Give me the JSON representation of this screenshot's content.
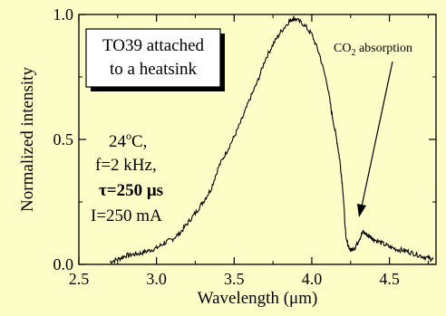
{
  "chart_data": {
    "type": "line",
    "xlabel": "Wavelength (μm)",
    "ylabel": "Normalized intensity",
    "xlim": [
      2.5,
      4.8
    ],
    "ylim": [
      0.0,
      1.0
    ],
    "x_ticks": [
      "2.5",
      "3.0",
      "3.5",
      "4.0",
      "4.5"
    ],
    "y_ticks": [
      "0.0",
      "0.5",
      "1.0"
    ],
    "grid": false,
    "series": [
      {
        "x": [
          2.7,
          2.75,
          2.8,
          2.85,
          2.9,
          2.95,
          3.0,
          3.05,
          3.1,
          3.15,
          3.2,
          3.25,
          3.3,
          3.35,
          3.4,
          3.45,
          3.5,
          3.55,
          3.6,
          3.65,
          3.7,
          3.75,
          3.8,
          3.85,
          3.88,
          3.9,
          3.95,
          4.0,
          4.05,
          4.1,
          4.13,
          4.16,
          4.18,
          4.2,
          4.22,
          4.25,
          4.28,
          4.3,
          4.33,
          4.35,
          4.38,
          4.4,
          4.45,
          4.5,
          4.55,
          4.6,
          4.65,
          4.7,
          4.75,
          4.78
        ],
        "y": [
          0.01,
          0.02,
          0.035,
          0.04,
          0.045,
          0.055,
          0.065,
          0.085,
          0.1,
          0.125,
          0.165,
          0.205,
          0.25,
          0.3,
          0.39,
          0.45,
          0.51,
          0.58,
          0.66,
          0.73,
          0.82,
          0.88,
          0.93,
          0.97,
          0.985,
          0.98,
          0.96,
          0.92,
          0.84,
          0.72,
          0.6,
          0.5,
          0.42,
          0.3,
          0.1,
          0.055,
          0.07,
          0.095,
          0.13,
          0.12,
          0.11,
          0.1,
          0.085,
          0.07,
          0.06,
          0.055,
          0.045,
          0.035,
          0.025,
          0.02
        ]
      }
    ],
    "annotations": {
      "box_line1": "TO39 attached",
      "box_line2": "to a heatsink",
      "cond_temp": "24",
      "cond_deg": "o",
      "cond_temp_unit": "C,",
      "cond_freq": "f=2 kHz,",
      "cond_tau": "τ=250 μs",
      "cond_current": "I=250 mA",
      "co2_prefix": "CO",
      "co2_sub": "2",
      "co2_suffix": " absorption"
    },
    "colors": {
      "background": "#fdfdc8",
      "line": "#000000",
      "box_fill": "#ffffff",
      "box_shadow": "#000000"
    }
  }
}
